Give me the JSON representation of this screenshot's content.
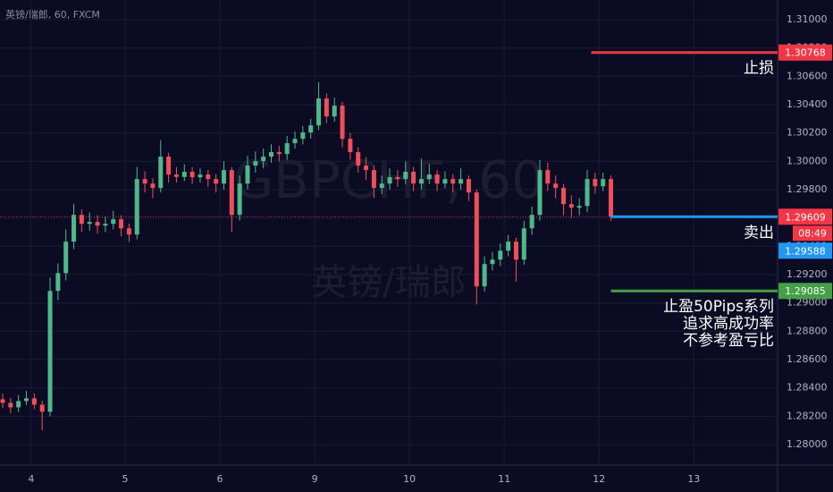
{
  "chart_data": {
    "type": "candlestick",
    "title": "英镑/瑞郎, 60, FXCM",
    "watermark": [
      "GBPCHF, 60",
      "英镑/瑞郎"
    ],
    "up_color": "#4fb88a",
    "down_color": "#ef4f5a",
    "open": [
      1.2832,
      1.28295,
      1.28263,
      1.28308,
      1.28327,
      1.28282,
      1.28232,
      1.29085,
      1.29211,
      1.29433,
      1.29622,
      1.29559,
      1.29572,
      1.29546,
      1.29559,
      1.29591,
      1.29527,
      1.29483,
      1.29875,
      1.29843,
      1.29812,
      1.30033,
      1.29907,
      1.2989,
      1.29926,
      1.29888,
      1.29907,
      1.29875,
      1.29843,
      1.29938,
      1.29622,
      1.29843,
      1.2997,
      1.30001,
      1.30033,
      1.30065,
      1.30052,
      1.30128,
      1.30159,
      1.30204,
      1.30254,
      1.30444,
      1.30317,
      1.30393,
      1.30159,
      1.30065,
      1.2997,
      1.29938,
      1.29812,
      1.29843,
      1.29888,
      1.29875,
      1.29926,
      1.29843,
      1.29875,
      1.29907,
      1.29843,
      1.29875,
      1.29843,
      1.29875,
      1.2978,
      1.29117,
      1.29275,
      1.29306,
      1.29369,
      1.29433,
      1.29306,
      1.29527,
      1.29622,
      1.29938,
      1.29843,
      1.29812,
      1.29698,
      1.29673,
      1.29685,
      1.29875,
      1.29824,
      1.29875
    ],
    "high": [
      1.2836,
      1.2833,
      1.2835,
      1.2838,
      1.2836,
      1.2831,
      1.2918,
      1.2928,
      1.2952,
      1.297,
      1.2966,
      1.2964,
      1.2962,
      1.2961,
      1.2965,
      1.2962,
      1.2956,
      1.2996,
      1.2993,
      1.2988,
      1.3015,
      1.3006,
      1.2996,
      1.2998,
      1.2996,
      1.2995,
      1.2994,
      1.2991,
      1.3,
      1.2996,
      1.299,
      1.3004,
      1.3007,
      1.3009,
      1.3012,
      1.3011,
      1.3018,
      1.3021,
      1.3025,
      1.303,
      1.30558,
      1.3048,
      1.3045,
      1.3042,
      1.302,
      1.301,
      1.3003,
      1.2997,
      1.299,
      1.2995,
      1.2994,
      1.3,
      1.2996,
      1.3002,
      1.2998,
      1.2994,
      1.2993,
      1.2991,
      1.2995,
      1.299,
      1.298,
      1.2933,
      1.2936,
      1.2942,
      1.2948,
      1.2946,
      1.2958,
      1.2968,
      1.3001,
      1.2999,
      1.299,
      1.2984,
      1.2976,
      1.2974,
      1.2994,
      1.2992,
      1.2992,
      1.299
    ],
    "low": [
      1.2826,
      1.2822,
      1.2823,
      1.2828,
      1.2825,
      1.281,
      1.282,
      1.2902,
      1.2916,
      1.2938,
      1.295,
      1.2951,
      1.2949,
      1.295,
      1.2952,
      1.2947,
      1.2943,
      1.2945,
      1.2978,
      1.2974,
      1.2978,
      1.2985,
      1.2985,
      1.2986,
      1.2984,
      1.2985,
      1.2982,
      1.2978,
      1.298,
      1.295,
      1.2958,
      1.298,
      1.2992,
      1.2995,
      1.2999,
      1.3,
      1.3001,
      1.3009,
      1.3012,
      1.3016,
      1.3022,
      1.3027,
      1.3028,
      1.301,
      1.3001,
      1.2992,
      1.2987,
      1.2974,
      1.2977,
      1.298,
      1.2982,
      1.2984,
      1.2979,
      1.298,
      1.2984,
      1.2979,
      1.2981,
      1.2978,
      1.298,
      1.2972,
      1.2899,
      1.2908,
      1.2923,
      1.2926,
      1.2933,
      1.2915,
      1.2927,
      1.2948,
      1.2958,
      1.2979,
      1.2974,
      1.2962,
      1.296,
      1.2962,
      1.2964,
      1.2977,
      1.2979,
      1.2958
    ],
    "close": [
      1.28295,
      1.28263,
      1.28308,
      1.28327,
      1.28282,
      1.28232,
      1.29085,
      1.29211,
      1.29433,
      1.29622,
      1.29559,
      1.29572,
      1.29546,
      1.29559,
      1.29591,
      1.29527,
      1.29483,
      1.29875,
      1.29843,
      1.29812,
      1.30033,
      1.29907,
      1.2989,
      1.29926,
      1.29888,
      1.29907,
      1.29875,
      1.29843,
      1.29938,
      1.29622,
      1.29843,
      1.2997,
      1.30001,
      1.30033,
      1.30065,
      1.30052,
      1.30128,
      1.30159,
      1.30204,
      1.30254,
      1.30444,
      1.30317,
      1.30393,
      1.30159,
      1.30065,
      1.2997,
      1.29938,
      1.29812,
      1.29843,
      1.29888,
      1.29875,
      1.29926,
      1.29843,
      1.29875,
      1.29907,
      1.29843,
      1.29875,
      1.29843,
      1.29875,
      1.2978,
      1.29117,
      1.29275,
      1.29306,
      1.29369,
      1.29433,
      1.29306,
      1.29527,
      1.29622,
      1.29938,
      1.29843,
      1.29812,
      1.29698,
      1.29673,
      1.29685,
      1.29875,
      1.29824,
      1.29875,
      1.29609
    ],
    "xlim": [
      -0.34,
      98.1
    ],
    "xticks": [
      {
        "value": 3.6,
        "label": "4"
      },
      {
        "value": 15.5,
        "label": "5"
      },
      {
        "value": 27.5,
        "label": "6"
      },
      {
        "value": 39.5,
        "label": "9"
      },
      {
        "value": 51.5,
        "label": "10"
      },
      {
        "value": 63.5,
        "label": "11"
      },
      {
        "value": 75.5,
        "label": "12"
      },
      {
        "value": 87.5,
        "label": "13"
      }
    ],
    "ylim": [
      1.27855,
      1.31139
    ],
    "yticks": [
      {
        "value": 1.31,
        "label": "1.31000"
      },
      {
        "value": 1.308,
        "label": "1.30800"
      },
      {
        "value": 1.306,
        "label": "1.30600"
      },
      {
        "value": 1.304,
        "label": "1.30400"
      },
      {
        "value": 1.302,
        "label": "1.30200"
      },
      {
        "value": 1.3,
        "label": "1.30000"
      },
      {
        "value": 1.298,
        "label": "1.29800"
      },
      {
        "value": 1.296,
        "label": "1.29600"
      },
      {
        "value": 1.294,
        "label": "1.29400"
      },
      {
        "value": 1.292,
        "label": "1.29200"
      },
      {
        "value": 1.29,
        "label": "1.29000"
      },
      {
        "value": 1.288,
        "label": "1.28800"
      },
      {
        "value": 1.286,
        "label": "1.28600"
      },
      {
        "value": 1.284,
        "label": "1.28400"
      },
      {
        "value": 1.282,
        "label": "1.28200"
      },
      {
        "value": 1.28,
        "label": "1.28000"
      }
    ],
    "grid": true,
    "levels": [
      {
        "name": [
          "止损"
        ],
        "value": 1.30768,
        "color": "#f23645",
        "axis_label": true
      },
      {
        "name": [
          "卖出"
        ],
        "value": 1.29609,
        "color": "#2196f3",
        "axis_label": false
      },
      {
        "name": [
          "止盈50Pips系列",
          "追求高成功率",
          "不参考盈亏比"
        ],
        "value": 1.29085,
        "color": "#43a047",
        "axis_label": true
      }
    ],
    "last_price": {
      "value": 1.29609,
      "color": "#f23645",
      "countdown": "08:49"
    },
    "price_marker": {
      "value": 1.29588,
      "color": "#2196f3"
    }
  }
}
